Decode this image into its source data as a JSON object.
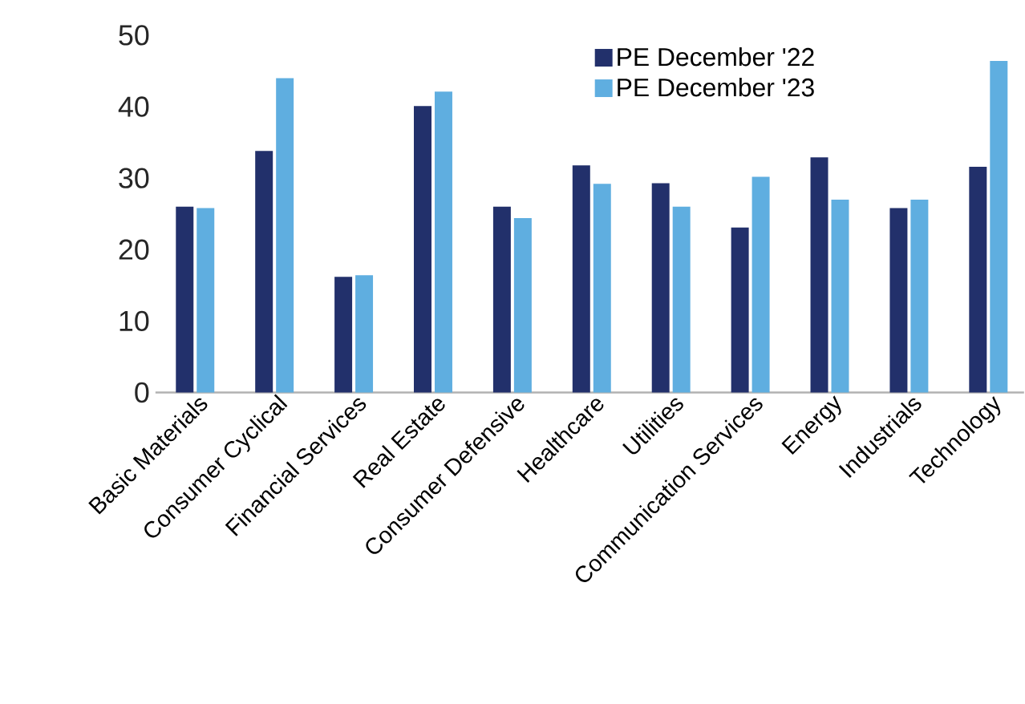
{
  "chart_data": {
    "type": "bar",
    "categories": [
      "Basic Materials",
      "Consumer Cyclical",
      "Financial Services",
      "Real Estate",
      "Consumer Defensive",
      "Healthcare",
      "Utilities",
      "Communication Services",
      "Energy",
      "Industrials",
      "Technology"
    ],
    "series": [
      {
        "name": "PE December '22",
        "color": "#22306b",
        "values": [
          26.0,
          33.8,
          16.2,
          40.1,
          26.0,
          31.8,
          29.3,
          23.1,
          32.9,
          25.8,
          31.6
        ]
      },
      {
        "name": "PE December '23",
        "color": "#5faee0",
        "values": [
          25.8,
          44.0,
          16.4,
          42.1,
          24.4,
          29.2,
          26.0,
          30.2,
          27.0,
          27.0,
          46.4
        ]
      }
    ],
    "ylim": [
      0,
      50
    ],
    "yticks": [
      0,
      10,
      20,
      30,
      40,
      50
    ],
    "legend": "top right"
  }
}
